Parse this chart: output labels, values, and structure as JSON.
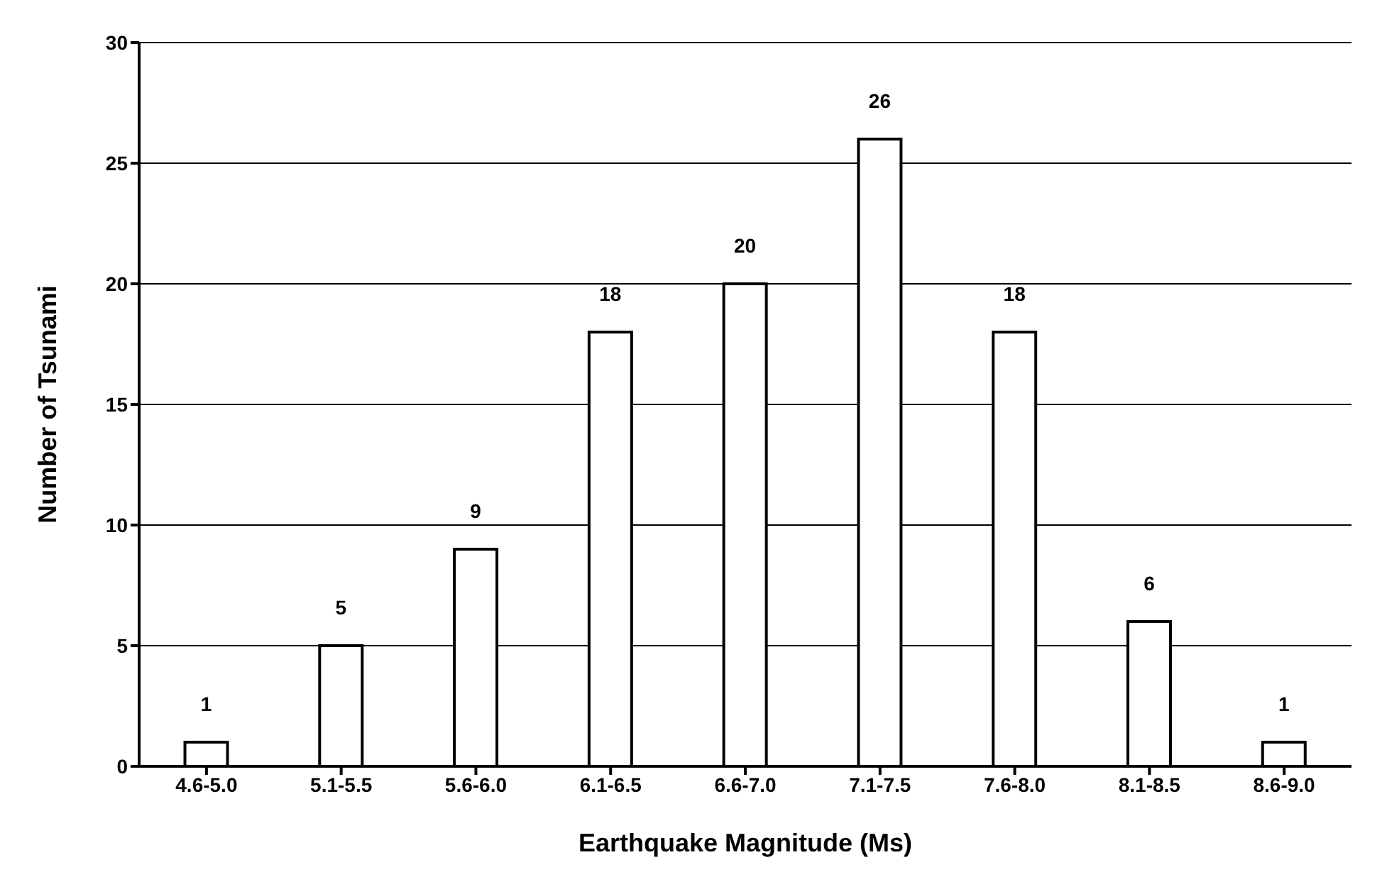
{
  "chart_data": {
    "type": "bar",
    "xlabel": "Earthquake Magnitude (Ms)",
    "ylabel": "Number of Tsunami",
    "categories": [
      "4.6-5.0",
      "5.1-5.5",
      "5.6-6.0",
      "6.1-6.5",
      "6.6-7.0",
      "7.1-7.5",
      "7.6-8.0",
      "8.1-8.5",
      "8.6-9.0"
    ],
    "values": [
      1,
      5,
      9,
      18,
      20,
      26,
      18,
      6,
      1
    ],
    "color": "#ffffff",
    "ylim": [
      0,
      30
    ],
    "yticks": [
      0,
      5,
      10,
      15,
      20,
      25,
      30
    ],
    "grid": "y",
    "data_labels": true
  }
}
